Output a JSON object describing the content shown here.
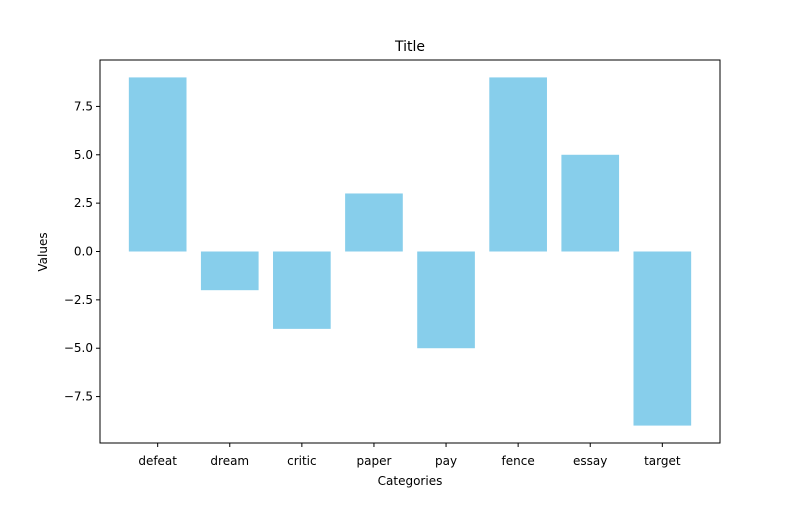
{
  "chart_data": {
    "type": "bar",
    "title": "Title",
    "xlabel": "Categories",
    "ylabel": "Values",
    "categories": [
      "defeat",
      "dream",
      "critic",
      "paper",
      "pay",
      "fence",
      "essay",
      "target"
    ],
    "values": [
      9,
      -2,
      -4,
      3,
      -5,
      9,
      5,
      -9
    ],
    "ylim": [
      -9.9,
      9.9
    ],
    "yticks": [
      -7.5,
      -5.0,
      -2.5,
      0.0,
      2.5,
      5.0,
      7.5
    ],
    "ytick_labels": [
      "−7.5",
      "−5.0",
      "−2.5",
      "0.0",
      "2.5",
      "5.0",
      "7.5"
    ],
    "bar_color": "#87ceeb",
    "grid": false,
    "legend": false
  }
}
